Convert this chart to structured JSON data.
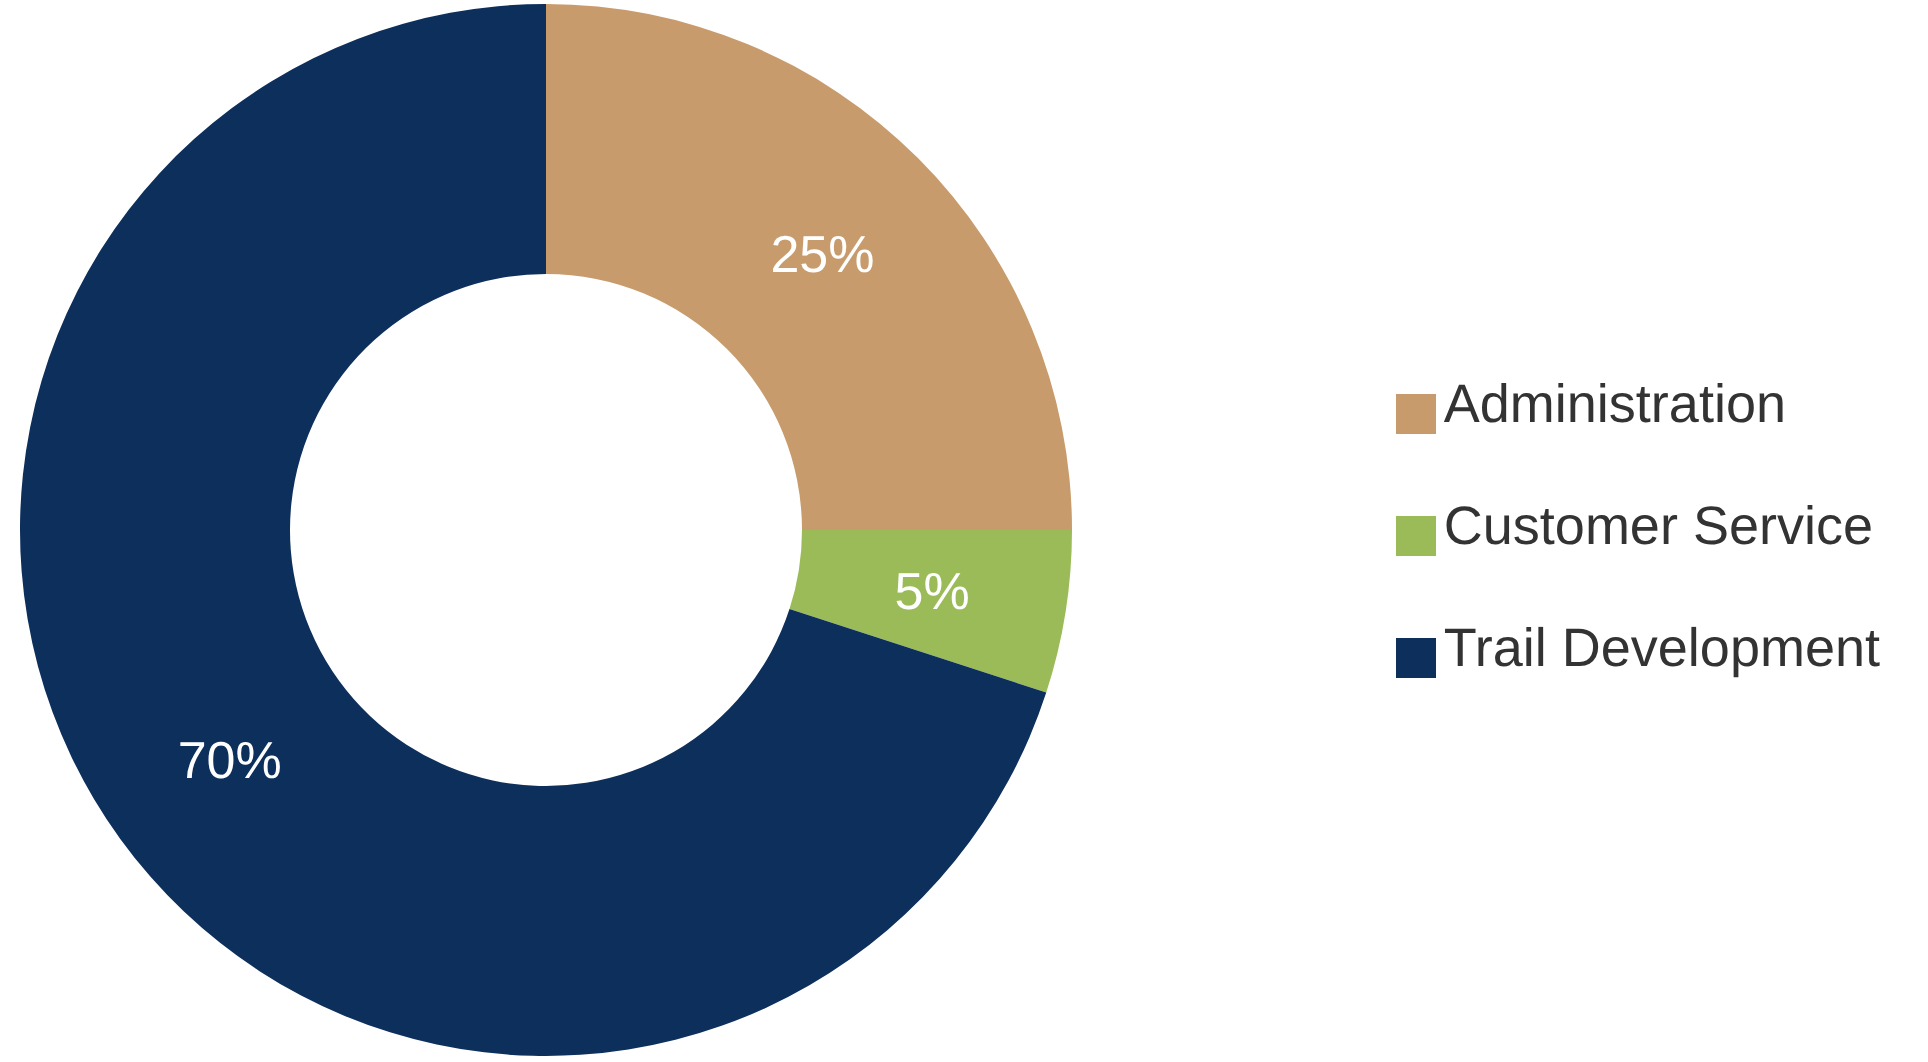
{
  "chart_data": {
    "type": "donut",
    "categories": [
      "Administration",
      "Customer Service",
      "Trail Development"
    ],
    "values": [
      25,
      5,
      70
    ],
    "value_labels": [
      "25%",
      "5%",
      "70%"
    ],
    "colors": [
      "#c89b6c",
      "#9bbb59",
      "#0d2f5c"
    ],
    "legend": "right"
  }
}
